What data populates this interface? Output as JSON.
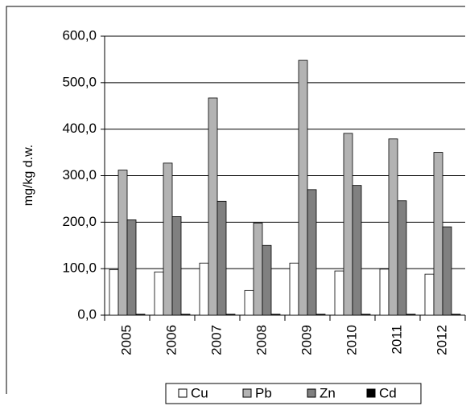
{
  "chart_data": {
    "type": "bar",
    "y_label": "mg/kg d.w.",
    "categories": [
      "2005",
      "2006",
      "2007",
      "2008",
      "2009",
      "2010",
      "2011",
      "2012"
    ],
    "series": [
      {
        "name": "Cu",
        "color": "#ffffff",
        "values": [
          98,
          93,
          112,
          53,
          112,
          95,
          99,
          88
        ]
      },
      {
        "name": "Pb",
        "color": "#b3b3b3",
        "values": [
          312,
          327,
          467,
          198,
          548,
          391,
          379,
          350
        ]
      },
      {
        "name": "Zn",
        "color": "#808080",
        "values": [
          205,
          212,
          245,
          150,
          270,
          279,
          246,
          190
        ]
      },
      {
        "name": "Cd",
        "color": "#000000",
        "values": [
          2,
          2,
          2,
          2,
          2,
          2,
          2,
          2
        ]
      }
    ],
    "ylim": [
      0,
      600
    ],
    "yticks": [
      {
        "value": 0,
        "label": "0,0"
      },
      {
        "value": 100,
        "label": "100,0"
      },
      {
        "value": 200,
        "label": "200,0"
      },
      {
        "value": 300,
        "label": "300,0"
      },
      {
        "value": 400,
        "label": "400,0"
      },
      {
        "value": 500,
        "label": "500,0"
      },
      {
        "value": 600,
        "label": "600,0"
      }
    ],
    "grid": true
  }
}
